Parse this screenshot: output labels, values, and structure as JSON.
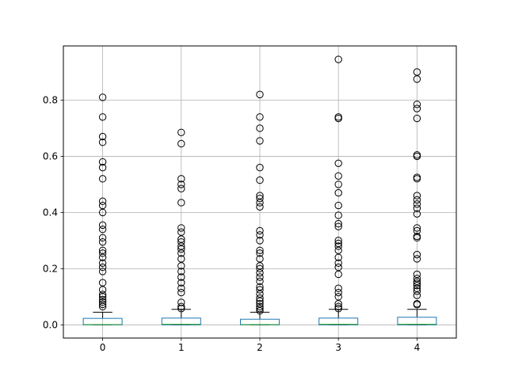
{
  "chart_data": {
    "type": "box",
    "title": "",
    "xlabel": "",
    "ylabel": "",
    "grid": true,
    "categories": [
      "0",
      "1",
      "2",
      "3",
      "4"
    ],
    "ylim": [
      -0.047,
      0.993
    ],
    "yticks": [
      0.0,
      0.2,
      0.4,
      0.6,
      0.8
    ],
    "ytick_labels": [
      "0.0",
      "0.2",
      "0.4",
      "0.6",
      "0.8"
    ],
    "colors": {
      "box": "#1f77b4",
      "median": "#2ca02c",
      "whisker": "#000000",
      "flier": "#000000",
      "grid": "#b0b0b0"
    },
    "boxes": [
      {
        "label": "0",
        "whisker_low": 0.0,
        "q1": 0.0,
        "median": 0.001,
        "q3": 0.023,
        "whisker_high": 0.045,
        "fliers": [
          0.065,
          0.073,
          0.081,
          0.09,
          0.1,
          0.108,
          0.125,
          0.15,
          0.19,
          0.205,
          0.22,
          0.24,
          0.255,
          0.265,
          0.295,
          0.31,
          0.34,
          0.355,
          0.4,
          0.425,
          0.44,
          0.52,
          0.56,
          0.58,
          0.65,
          0.67,
          0.74,
          0.81
        ]
      },
      {
        "label": "1",
        "whisker_low": 0.0,
        "q1": 0.0,
        "median": 0.002,
        "q3": 0.024,
        "whisker_high": 0.055,
        "fliers": [
          0.058,
          0.065,
          0.08,
          0.115,
          0.13,
          0.15,
          0.17,
          0.19,
          0.21,
          0.235,
          0.255,
          0.27,
          0.28,
          0.295,
          0.305,
          0.33,
          0.345,
          0.435,
          0.485,
          0.5,
          0.52,
          0.645,
          0.685
        ]
      },
      {
        "label": "2",
        "whisker_low": 0.0,
        "q1": 0.0,
        "median": 0.001,
        "q3": 0.02,
        "whisker_high": 0.045,
        "fliers": [
          0.05,
          0.058,
          0.065,
          0.075,
          0.085,
          0.095,
          0.11,
          0.125,
          0.135,
          0.155,
          0.17,
          0.185,
          0.2,
          0.21,
          0.235,
          0.255,
          0.265,
          0.3,
          0.32,
          0.335,
          0.42,
          0.435,
          0.45,
          0.46,
          0.515,
          0.56,
          0.655,
          0.7,
          0.74,
          0.82
        ]
      },
      {
        "label": "3",
        "whisker_low": 0.0,
        "q1": 0.0,
        "median": 0.002,
        "q3": 0.024,
        "whisker_high": 0.055,
        "fliers": [
          0.058,
          0.065,
          0.075,
          0.1,
          0.115,
          0.13,
          0.18,
          0.205,
          0.22,
          0.24,
          0.265,
          0.28,
          0.29,
          0.3,
          0.35,
          0.36,
          0.39,
          0.425,
          0.47,
          0.5,
          0.53,
          0.575,
          0.735,
          0.74,
          0.945
        ]
      },
      {
        "label": "4",
        "whisker_low": 0.0,
        "q1": 0.0,
        "median": 0.002,
        "q3": 0.027,
        "whisker_high": 0.055,
        "fliers": [
          0.072,
          0.075,
          0.105,
          0.12,
          0.13,
          0.14,
          0.148,
          0.155,
          0.165,
          0.18,
          0.235,
          0.25,
          0.31,
          0.315,
          0.335,
          0.345,
          0.395,
          0.415,
          0.43,
          0.445,
          0.46,
          0.52,
          0.525,
          0.6,
          0.605,
          0.735,
          0.77,
          0.785,
          0.875,
          0.9
        ]
      }
    ]
  }
}
